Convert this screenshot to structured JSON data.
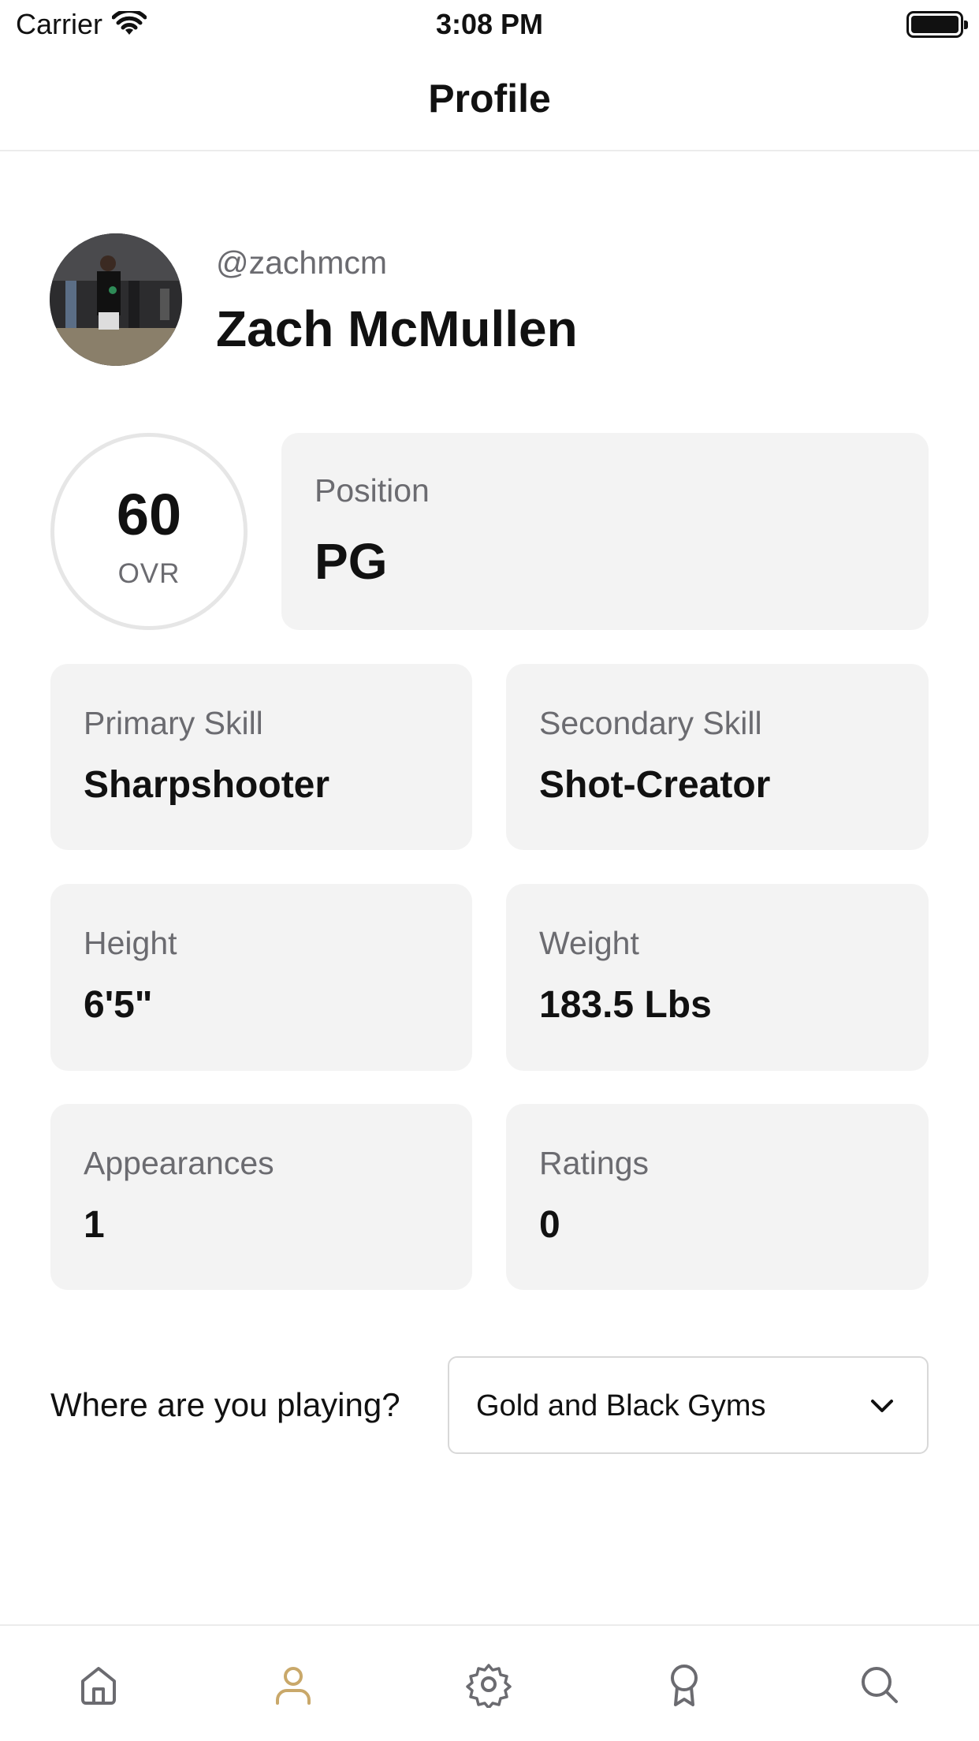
{
  "status_bar": {
    "carrier": "Carrier",
    "time": "3:08 PM"
  },
  "nav": {
    "title": "Profile"
  },
  "profile": {
    "username": "@zachmcm",
    "name": "Zach McMullen"
  },
  "ovr": {
    "value": "60",
    "label": "OVR"
  },
  "position": {
    "label": "Position",
    "value": "PG"
  },
  "stats": [
    {
      "label": "Primary Skill",
      "value": "Sharpshooter"
    },
    {
      "label": "Secondary Skill",
      "value": "Shot-Creator"
    },
    {
      "label": "Height",
      "value": "6'5\""
    },
    {
      "label": "Weight",
      "value": "183.5 Lbs"
    },
    {
      "label": "Appearances",
      "value": "1"
    },
    {
      "label": "Ratings",
      "value": "0"
    }
  ],
  "location": {
    "prompt": "Where are you playing?",
    "selected": "Gold and Black Gyms"
  },
  "tabs": [
    {
      "icon": "home-icon",
      "active": false
    },
    {
      "icon": "person-icon",
      "active": true
    },
    {
      "icon": "gear-icon",
      "active": false
    },
    {
      "icon": "award-icon",
      "active": false
    },
    {
      "icon": "search-icon",
      "active": false
    }
  ],
  "colors": {
    "accent": "#c9a86a",
    "inactive_icon": "#6b6b70",
    "card_bg": "#f3f3f3"
  }
}
